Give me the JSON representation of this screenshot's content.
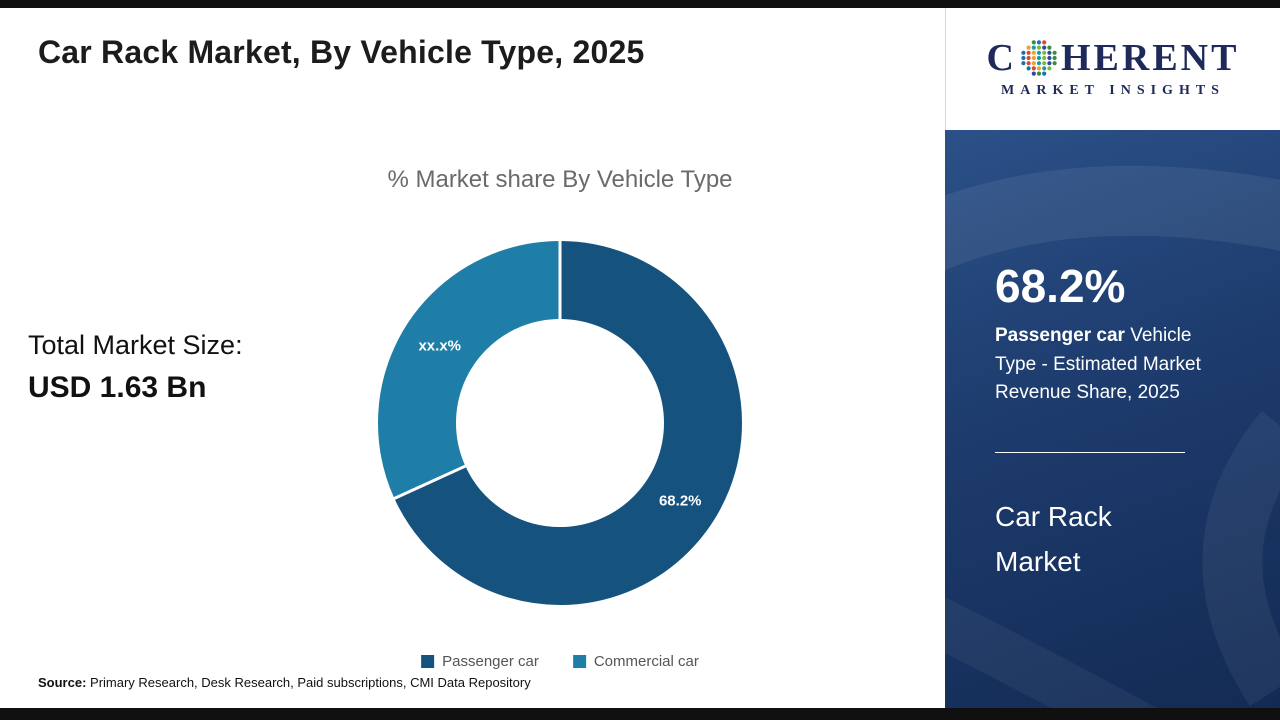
{
  "header": {
    "title": "Car Rack Market, By Vehicle Type, 2025"
  },
  "chart_data": {
    "type": "donut",
    "title": "% Market share By Vehicle Type",
    "categories": [
      "Passenger car",
      "Commercial car"
    ],
    "values": [
      68.2,
      31.8
    ],
    "slice_labels": [
      "68.2%",
      "xx.x%"
    ],
    "colors": [
      "#15537e",
      "#1f7ea7"
    ],
    "legend_position": "bottom"
  },
  "total_market": {
    "label": "Total Market Size:",
    "value": "USD 1.63 Bn"
  },
  "sidebar": {
    "stat_value": "68.2%",
    "stat_highlight": "Passenger car",
    "stat_rest": " Vehicle Type - Estimated Market Revenue Share, 2025",
    "market_name": "Car Rack Market",
    "accent_color": "#1d3b6d"
  },
  "logo": {
    "part1": "C",
    "part2": "HERENT",
    "line2": "MARKET INSIGHTS",
    "globe_colors": [
      "#3a8c3f",
      "#1b6fb5",
      "#d9492f",
      "#f0a030",
      "#199e96",
      "#7cb93e",
      "#2e4a9e"
    ]
  },
  "source": {
    "label": "Source:",
    "text": " Primary Research, Desk Research, Paid subscriptions, CMI Data Repository"
  }
}
